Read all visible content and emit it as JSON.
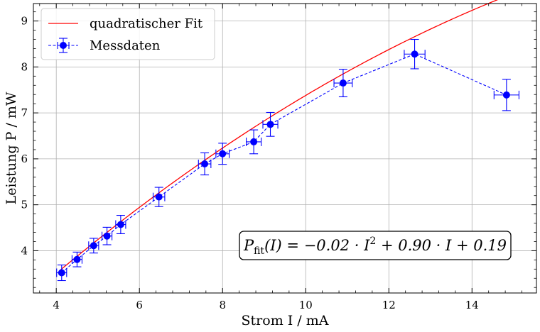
{
  "chart_data": {
    "type": "scatter",
    "xlabel": "Strom I / mA",
    "ylabel": "Leistung P / mW",
    "xlim": [
      3.45,
      15.55
    ],
    "ylim": [
      3.08,
      9.38
    ],
    "xticks": [
      4,
      6,
      8,
      10,
      12,
      14
    ],
    "yticks": [
      4,
      5,
      6,
      7,
      8,
      9
    ],
    "grid": true,
    "legend_position": "top-left",
    "series": [
      {
        "name": "quadratischer Fit",
        "kind": "line",
        "color": "#ff0000",
        "x_range": [
          4.1,
          15.0
        ],
        "coefficients": {
          "a": -0.0183,
          "b": 0.902,
          "c": 0.19
        }
      },
      {
        "name": "Messdaten",
        "kind": "errorbar",
        "color": "#0000ff",
        "linestyle": "dashed",
        "x": [
          4.13,
          4.5,
          4.9,
          5.22,
          5.55,
          6.47,
          7.57,
          8.0,
          8.75,
          9.15,
          10.9,
          12.62,
          14.83
        ],
        "y": [
          3.52,
          3.81,
          4.11,
          4.32,
          4.57,
          5.17,
          5.89,
          6.11,
          6.37,
          6.75,
          7.65,
          8.28,
          7.39
        ],
        "xerr": [
          0.12,
          0.12,
          0.12,
          0.12,
          0.12,
          0.14,
          0.15,
          0.16,
          0.18,
          0.18,
          0.22,
          0.25,
          0.3
        ],
        "yerr": [
          0.17,
          0.16,
          0.16,
          0.19,
          0.2,
          0.21,
          0.24,
          0.23,
          0.26,
          0.26,
          0.3,
          0.32,
          0.34
        ]
      }
    ],
    "annotation": {
      "text": "P_fit(I) = −0.02 · I² + 0.90 · I + 0.19",
      "lhs_main": "P",
      "lhs_sub": "fit",
      "lhs_arg": "(I) = −0.02 · I",
      "sup": "2",
      "rhs": " + 0.90 · I + 0.19"
    }
  }
}
